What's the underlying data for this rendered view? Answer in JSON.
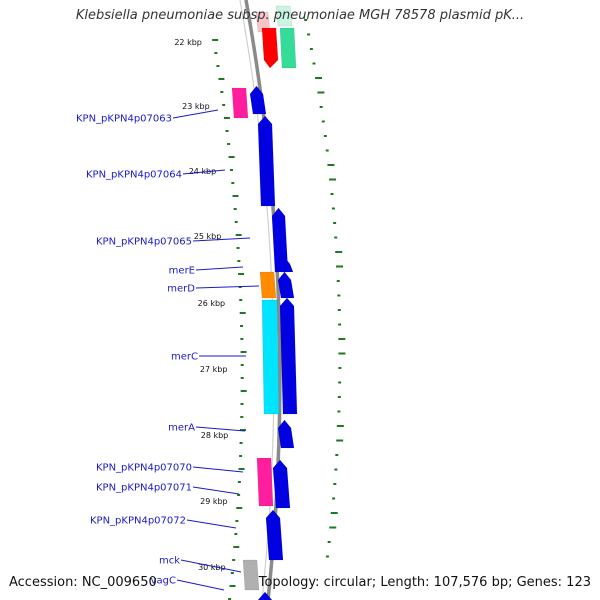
{
  "title": "Klebsiella pneumoniae subsp. pneumoniae MGH 78578 plasmid pK...",
  "footer": {
    "accession": "Accession: NC_009650",
    "topology": "Topology: circular; Length: 107,576 bp; Genes: 123"
  },
  "colors": {
    "backbone": "#888888",
    "gc_ticks": "#1f7a1f",
    "cds": "#0000e0",
    "label": "#1a1acc"
  },
  "ticks": [
    {
      "label": "22 kbp"
    },
    {
      "label": "23 kbp"
    },
    {
      "label": "24 kbp"
    },
    {
      "label": "25 kbp"
    },
    {
      "label": "26 kbp"
    },
    {
      "label": "27 kbp"
    },
    {
      "label": "28 kbp"
    },
    {
      "label": "29 kbp"
    },
    {
      "label": "30 kbp"
    }
  ],
  "gene_labels": [
    {
      "text": "KPN_pKPN4p07063"
    },
    {
      "text": "KPN_pKPN4p07064"
    },
    {
      "text": "KPN_pKPN4p07065"
    },
    {
      "text": "merE"
    },
    {
      "text": "merD"
    },
    {
      "text": "merC"
    },
    {
      "text": "merA"
    },
    {
      "text": "KPN_pKPN4p07070"
    },
    {
      "text": "KPN_pKPN4p07071"
    },
    {
      "text": "KPN_pKPN4p07072"
    },
    {
      "text": "mck"
    },
    {
      "text": "vagC"
    }
  ]
}
